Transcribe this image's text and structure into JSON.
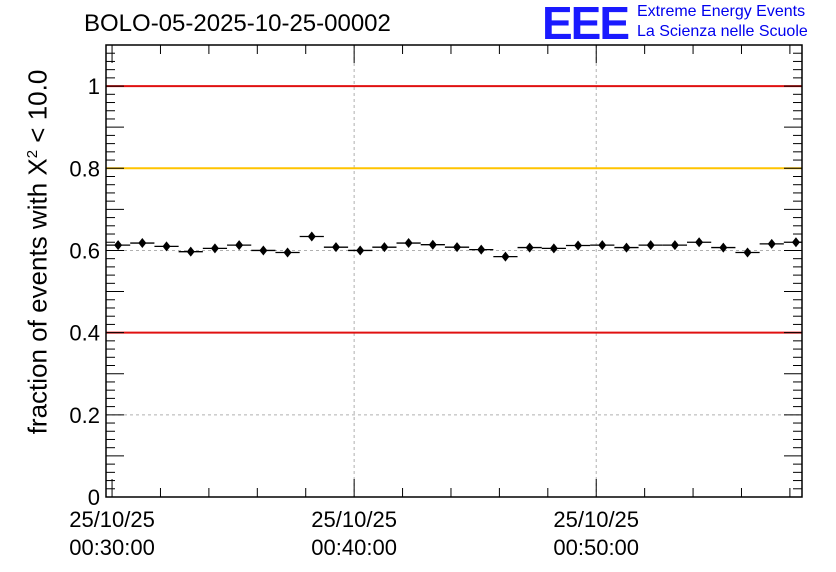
{
  "header": {
    "run_title": "BOLO-05-2025-10-25-00002",
    "logo_text": "EEE",
    "logo_line1": "Extreme Energy Events",
    "logo_line2": "La Scienza nelle Scuole"
  },
  "colors": {
    "limit_red": "#e01010",
    "limit_yellow": "#ffc400",
    "logo_blue": "#1a1aff",
    "grid": "#b0b0b0",
    "marker": "#000000"
  },
  "chart_data": {
    "type": "scatter",
    "title": "BOLO-05-2025-10-25-00002",
    "xlabel": "",
    "ylabel_prefix": "fraction of events with X",
    "ylabel_sup": "2",
    "ylabel_suffix": " < 10.0",
    "x_unit": "minutes after 00:30:00",
    "xlim": [
      -0.25,
      28.5
    ],
    "ylim": [
      0,
      1.1
    ],
    "x_ticks": [
      0,
      10,
      20
    ],
    "x_tick_labels": [
      [
        "25/10/25",
        "00:30:00"
      ],
      [
        "25/10/25",
        "00:40:00"
      ],
      [
        "25/10/25",
        "00:50:00"
      ]
    ],
    "y_ticks": [
      0,
      0.2,
      0.4,
      0.6,
      0.8,
      1
    ],
    "y_tick_labels": [
      "0",
      "0.2",
      "0.4",
      "0.6",
      "0.8",
      "1"
    ],
    "grid": true,
    "reference_lines": [
      {
        "y": 1.0,
        "color": "red"
      },
      {
        "y": 0.8,
        "color": "yellow"
      },
      {
        "y": 0.4,
        "color": "red"
      }
    ],
    "bin_width": 1,
    "x": [
      0.25,
      1.25,
      2.25,
      3.25,
      4.25,
      5.25,
      6.25,
      7.25,
      8.25,
      9.25,
      10.25,
      11.25,
      12.25,
      13.25,
      14.25,
      15.25,
      16.25,
      17.25,
      18.25,
      19.25,
      20.25,
      21.25,
      22.25,
      23.25,
      24.25,
      25.25,
      26.25,
      27.25,
      28.25
    ],
    "y": [
      0.613,
      0.618,
      0.61,
      0.597,
      0.605,
      0.613,
      0.6,
      0.595,
      0.634,
      0.608,
      0.6,
      0.608,
      0.618,
      0.614,
      0.608,
      0.602,
      0.585,
      0.607,
      0.605,
      0.612,
      0.613,
      0.607,
      0.613,
      0.613,
      0.62,
      0.607,
      0.595,
      0.616,
      0.62
    ],
    "y_err": 0.006
  }
}
